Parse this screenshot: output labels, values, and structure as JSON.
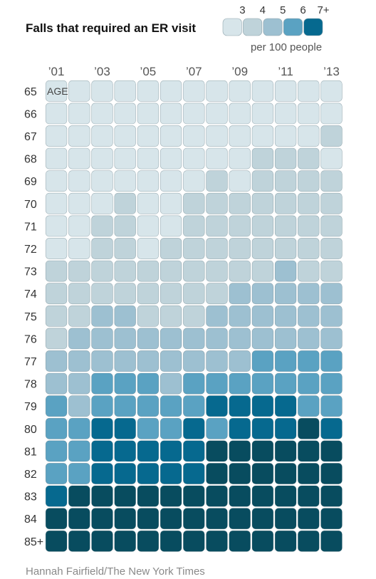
{
  "chart_data": {
    "type": "heatmap",
    "title": "Falls that required an ER visit",
    "x_tick_labels": [
      "’01",
      "’03",
      "’05",
      "’07",
      "’09",
      "’11",
      "’13"
    ],
    "x_tick_years": [
      2001,
      2003,
      2005,
      2007,
      2009,
      2011,
      2013
    ],
    "years": [
      2001,
      2002,
      2003,
      2004,
      2005,
      2006,
      2007,
      2008,
      2009,
      2010,
      2011,
      2012,
      2013
    ],
    "row_labels": [
      "65",
      "66",
      "67",
      "68",
      "69",
      "70",
      "71",
      "72",
      "73",
      "74",
      "75",
      "76",
      "77",
      "78",
      "79",
      "80",
      "81",
      "82",
      "83",
      "84",
      "85+"
    ],
    "row_axis_label": "AGE",
    "legend": {
      "labels": [
        "3",
        "4",
        "5",
        "6",
        "7+"
      ],
      "unit": "per 100 people",
      "colors": [
        "#d7e5ea",
        "#bfd3da",
        "#9dc0d1",
        "#5aa2c2",
        "#06698f",
        "#084c5f"
      ]
    },
    "values_level": [
      [
        0,
        0,
        0,
        0,
        0,
        0,
        0,
        0,
        0,
        0,
        0,
        0,
        0
      ],
      [
        0,
        0,
        0,
        0,
        0,
        0,
        0,
        0,
        0,
        0,
        0,
        0,
        0
      ],
      [
        0,
        0,
        0,
        0,
        0,
        0,
        0,
        0,
        0,
        0,
        0,
        0,
        1
      ],
      [
        0,
        0,
        0,
        0,
        0,
        0,
        0,
        0,
        0,
        1,
        1,
        1,
        0
      ],
      [
        0,
        0,
        0,
        0,
        0,
        0,
        0,
        1,
        0,
        1,
        1,
        1,
        1
      ],
      [
        0,
        0,
        0,
        1,
        0,
        0,
        1,
        1,
        1,
        1,
        1,
        1,
        1
      ],
      [
        0,
        0,
        1,
        1,
        0,
        0,
        1,
        1,
        1,
        1,
        1,
        1,
        1
      ],
      [
        0,
        0,
        1,
        1,
        0,
        1,
        1,
        1,
        1,
        1,
        1,
        1,
        1
      ],
      [
        1,
        1,
        1,
        1,
        1,
        1,
        1,
        1,
        1,
        1,
        2,
        1,
        1
      ],
      [
        1,
        1,
        1,
        1,
        1,
        1,
        1,
        1,
        2,
        2,
        2,
        2,
        2
      ],
      [
        1,
        1,
        2,
        2,
        1,
        1,
        1,
        2,
        2,
        2,
        2,
        2,
        2
      ],
      [
        1,
        2,
        2,
        2,
        2,
        2,
        2,
        2,
        2,
        2,
        2,
        2,
        2
      ],
      [
        2,
        2,
        2,
        2,
        2,
        2,
        2,
        2,
        2,
        3,
        3,
        3,
        3
      ],
      [
        2,
        2,
        3,
        3,
        3,
        2,
        3,
        3,
        3,
        3,
        3,
        3,
        3
      ],
      [
        3,
        2,
        3,
        3,
        3,
        3,
        3,
        4,
        4,
        4,
        4,
        3,
        3
      ],
      [
        3,
        3,
        4,
        4,
        3,
        3,
        4,
        3,
        4,
        4,
        4,
        5,
        4
      ],
      [
        3,
        3,
        4,
        4,
        4,
        4,
        4,
        5,
        5,
        5,
        5,
        5,
        5
      ],
      [
        3,
        3,
        4,
        4,
        4,
        4,
        4,
        5,
        5,
        5,
        5,
        5,
        5
      ],
      [
        4,
        5,
        5,
        5,
        5,
        5,
        5,
        5,
        5,
        5,
        5,
        5,
        5
      ],
      [
        5,
        5,
        5,
        5,
        5,
        5,
        5,
        5,
        5,
        5,
        5,
        5,
        5
      ],
      [
        5,
        5,
        5,
        5,
        5,
        5,
        5,
        5,
        5,
        5,
        5,
        5,
        5
      ]
    ]
  },
  "credit": "Hannah Fairfield/The New York Times"
}
